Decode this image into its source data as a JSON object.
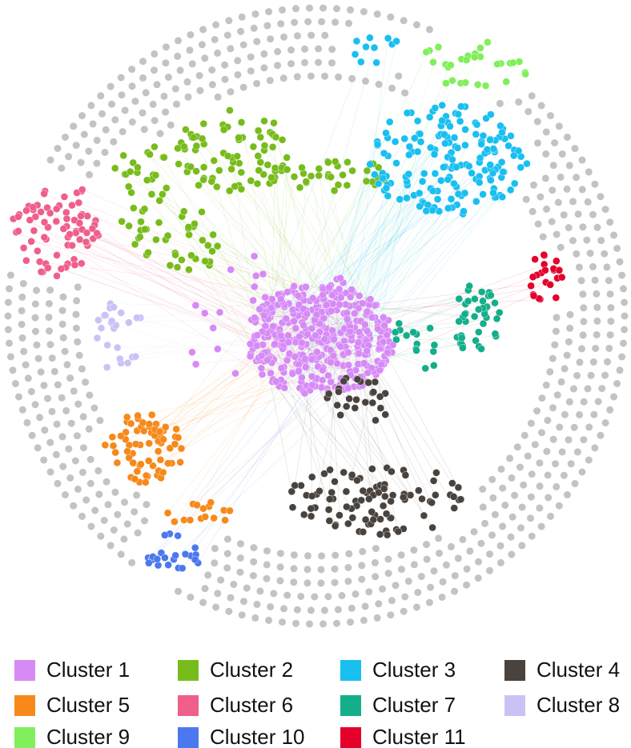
{
  "legend": {
    "items": [
      {
        "label": "Cluster 1",
        "color": "#d68af6"
      },
      {
        "label": "Cluster 2",
        "color": "#78bc1c"
      },
      {
        "label": "Cluster 3",
        "color": "#19bff0"
      },
      {
        "label": "Cluster 4",
        "color": "#4a433d"
      },
      {
        "label": "Cluster 5",
        "color": "#f6891a"
      },
      {
        "label": "Cluster 6",
        "color": "#ef5f8a"
      },
      {
        "label": "Cluster 7",
        "color": "#14ae8a"
      },
      {
        "label": "Cluster 8",
        "color": "#c9c3f5"
      },
      {
        "label": "Cluster 9",
        "color": "#80ef5a"
      },
      {
        "label": "Cluster 10",
        "color": "#4b78ef"
      },
      {
        "label": "Cluster 11",
        "color": "#e4002b"
      }
    ]
  }
}
